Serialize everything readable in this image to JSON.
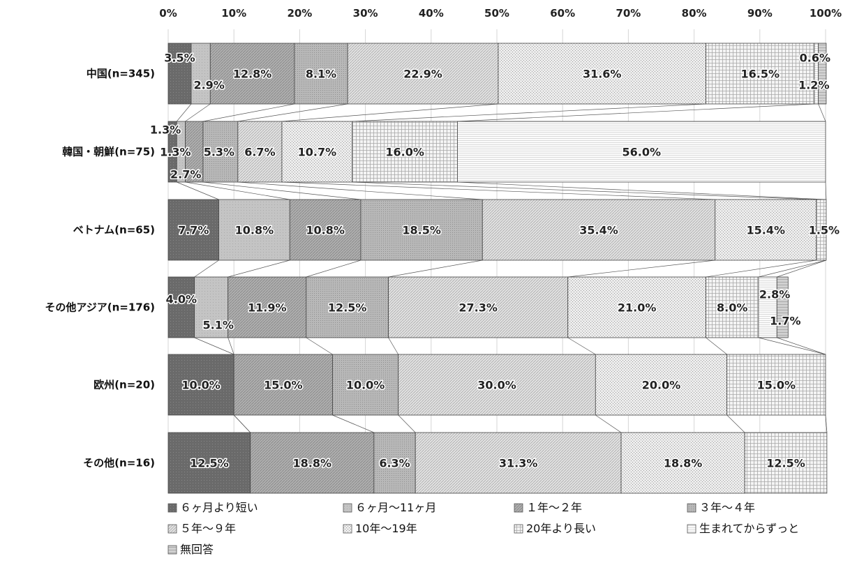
{
  "chart_data": {
    "type": "bar",
    "orientation": "horizontal",
    "stacked": "100%",
    "x_ticks": [
      "0%",
      "10%",
      "20%",
      "30%",
      "40%",
      "50%",
      "60%",
      "70%",
      "80%",
      "90%",
      "100%"
    ],
    "xlim": [
      0,
      100
    ],
    "grid": true,
    "legend_position": "bottom",
    "categories": [
      "中国(n=345)",
      "韓国・朝鮮(n=75)",
      "ベトナム(n=65)",
      "その他アジア(n=176)",
      "欧州(n=20)",
      "その他(n=16)"
    ],
    "series": [
      {
        "name": "６ヶ月より短い",
        "values": [
          3.5,
          1.3,
          7.7,
          4.0,
          10.0,
          12.5
        ],
        "labels": [
          "3.5%",
          "1.3%",
          "7.7%",
          "4.0%",
          "10.0%",
          "12.5%"
        ]
      },
      {
        "name": "６ヶ月～11ヶ月",
        "values": [
          2.9,
          1.3,
          10.8,
          5.1,
          0,
          0
        ],
        "labels": [
          "2.9%",
          "1.3%",
          "10.8%",
          "5.1%",
          "",
          ""
        ]
      },
      {
        "name": "１年～２年",
        "values": [
          12.8,
          2.7,
          10.8,
          11.9,
          15.0,
          18.8
        ],
        "labels": [
          "12.8%",
          "2.7%",
          "10.8%",
          "11.9%",
          "15.0%",
          "18.8%"
        ]
      },
      {
        "name": "３年～４年",
        "values": [
          8.1,
          5.3,
          18.5,
          12.5,
          10.0,
          6.3
        ],
        "labels": [
          "8.1%",
          "5.3%",
          "18.5%",
          "12.5%",
          "10.0%",
          "6.3%"
        ]
      },
      {
        "name": "５年～９年",
        "values": [
          22.9,
          6.7,
          35.4,
          27.3,
          30.0,
          31.3
        ],
        "labels": [
          "22.9%",
          "6.7%",
          "35.4%",
          "27.3%",
          "30.0%",
          "31.3%"
        ]
      },
      {
        "name": "10年～19年",
        "values": [
          31.6,
          10.7,
          15.4,
          21.0,
          20.0,
          18.8
        ],
        "labels": [
          "31.6%",
          "10.7%",
          "15.4%",
          "21.0%",
          "20.0%",
          "18.8%"
        ]
      },
      {
        "name": "20年より長い",
        "values": [
          16.5,
          16.0,
          1.5,
          8.0,
          15.0,
          12.5
        ],
        "labels": [
          "16.5%",
          "16.0%",
          "1.5%",
          "8.0%",
          "15.0%",
          "12.5%"
        ]
      },
      {
        "name": "生まれてからずっと",
        "values": [
          0.6,
          56.0,
          0,
          2.8,
          0,
          0
        ],
        "labels": [
          "0.6%",
          "56.0%",
          "",
          "2.8%",
          "",
          ""
        ]
      },
      {
        "name": "無回答",
        "values": [
          1.2,
          0,
          0,
          1.7,
          0,
          0
        ],
        "labels": [
          "1.2%",
          "",
          "",
          "1.7%",
          "",
          ""
        ]
      }
    ],
    "colors": [
      "#6e6e6e",
      "#c4c4c4",
      "#a6a6a6",
      "#b6b6b6",
      "#d8d8d8",
      "#e6e6e6",
      "#ededed",
      "#f7f7f7",
      "#c9c9c9"
    ]
  }
}
